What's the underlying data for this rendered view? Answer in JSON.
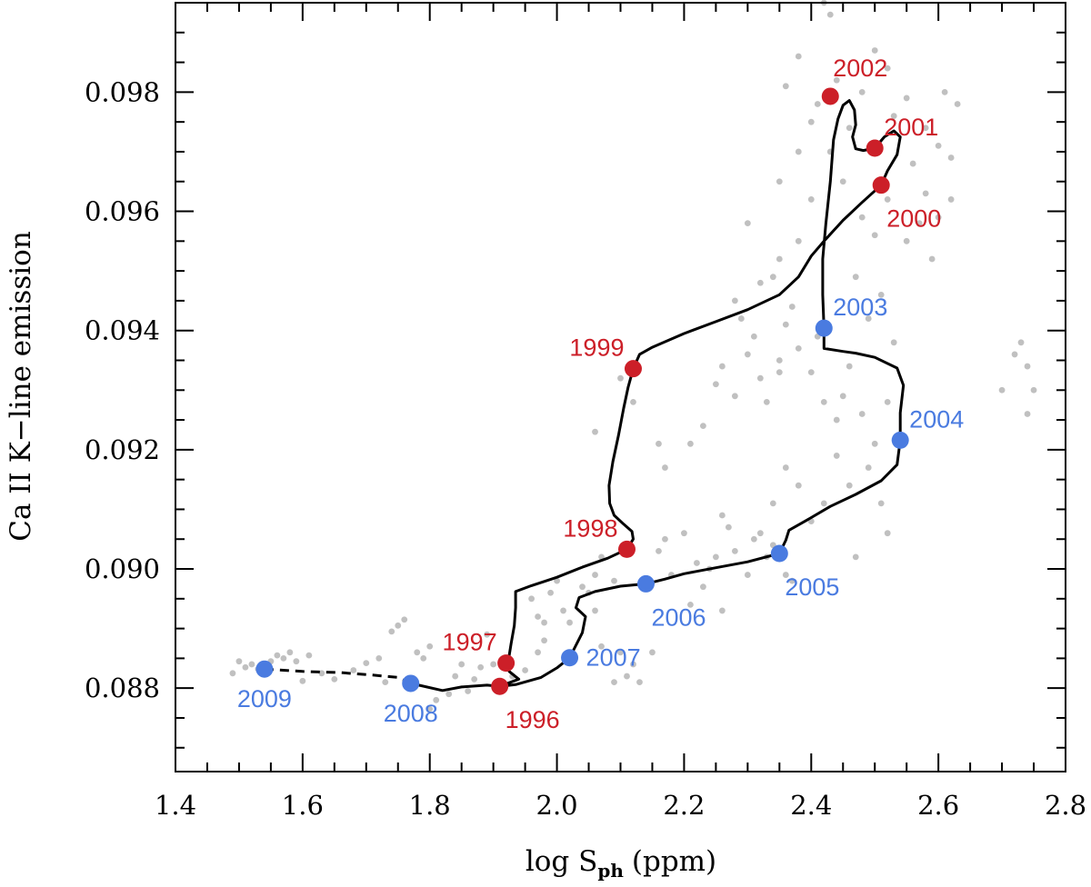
{
  "chart_data": {
    "type": "scatter",
    "title": "",
    "xlabel_main": "log S",
    "xlabel_sub": "ph",
    "xlabel_unit": "(ppm)",
    "ylabel": "Ca II K−line emission",
    "xlim": [
      1.4,
      2.8
    ],
    "ylim": [
      0.0866,
      0.0995
    ],
    "x_ticks": [
      1.4,
      1.6,
      1.8,
      2.0,
      2.2,
      2.4,
      2.6,
      2.8
    ],
    "x_tick_labels": [
      "1.4",
      "1.6",
      "1.8",
      "2.0",
      "2.2",
      "2.4",
      "2.6",
      "2.8"
    ],
    "y_ticks": [
      0.088,
      0.09,
      0.092,
      0.094,
      0.096,
      0.098
    ],
    "y_tick_labels": [
      "0.088",
      "0.090",
      "0.092",
      "0.094",
      "0.096",
      "0.098"
    ],
    "colors": {
      "rising": "#cc1f28",
      "declining": "#4a7be0",
      "scatter": "#c0c0c0",
      "track": "#000000"
    },
    "years": [
      {
        "year": "1996",
        "x": 1.91,
        "y": 0.08803,
        "phase": "rising",
        "label_pos": "below-right"
      },
      {
        "year": "1997",
        "x": 1.92,
        "y": 0.08842,
        "phase": "rising",
        "label_pos": "upper-left"
      },
      {
        "year": "1998",
        "x": 2.11,
        "y": 0.09033,
        "phase": "rising",
        "label_pos": "upper-left"
      },
      {
        "year": "1999",
        "x": 2.12,
        "y": 0.09336,
        "phase": "rising",
        "label_pos": "upper-left"
      },
      {
        "year": "2000",
        "x": 2.51,
        "y": 0.09644,
        "phase": "rising",
        "label_pos": "below-right"
      },
      {
        "year": "2001",
        "x": 2.5,
        "y": 0.09706,
        "phase": "rising",
        "label_pos": "upper-right"
      },
      {
        "year": "2002",
        "x": 2.43,
        "y": 0.09793,
        "phase": "rising",
        "label_pos": "above-right"
      },
      {
        "year": "2003",
        "x": 2.42,
        "y": 0.09404,
        "phase": "declining",
        "label_pos": "upper-right"
      },
      {
        "year": "2004",
        "x": 2.54,
        "y": 0.09216,
        "phase": "declining",
        "label_pos": "upper-right"
      },
      {
        "year": "2005",
        "x": 2.35,
        "y": 0.09026,
        "phase": "declining",
        "label_pos": "below-right"
      },
      {
        "year": "2006",
        "x": 2.14,
        "y": 0.08975,
        "phase": "declining",
        "label_pos": "below-right"
      },
      {
        "year": "2007",
        "x": 2.02,
        "y": 0.08851,
        "phase": "declining",
        "label_pos": "right"
      },
      {
        "year": "2008",
        "x": 1.77,
        "y": 0.08808,
        "phase": "declining",
        "label_pos": "below"
      },
      {
        "year": "2009",
        "x": 1.54,
        "y": 0.08832,
        "phase": "declining",
        "label_pos": "below"
      }
    ],
    "track_solid": [
      [
        1.77,
        0.08808
      ],
      [
        1.82,
        0.08796
      ],
      [
        1.85,
        0.08802
      ],
      [
        1.89,
        0.08805
      ],
      [
        1.91,
        0.08803
      ],
      [
        1.935,
        0.08806
      ],
      [
        1.975,
        0.08818
      ],
      [
        2.0,
        0.08834
      ],
      [
        2.02,
        0.08851
      ],
      [
        2.03,
        0.08872
      ],
      [
        2.04,
        0.08893
      ],
      [
        2.045,
        0.0892
      ],
      [
        2.03,
        0.08935
      ],
      [
        2.035,
        0.08952
      ],
      [
        2.06,
        0.08962
      ],
      [
        2.1,
        0.08971
      ],
      [
        2.14,
        0.08975
      ],
      [
        2.17,
        0.08983
      ],
      [
        2.2,
        0.08992
      ],
      [
        2.25,
        0.09002
      ],
      [
        2.3,
        0.09012
      ],
      [
        2.35,
        0.09026
      ],
      [
        2.36,
        0.09048
      ],
      [
        2.365,
        0.09065
      ],
      [
        2.39,
        0.0908
      ],
      [
        2.43,
        0.09105
      ],
      [
        2.47,
        0.09125
      ],
      [
        2.51,
        0.09148
      ],
      [
        2.535,
        0.09175
      ],
      [
        2.54,
        0.09216
      ],
      [
        2.54,
        0.09262
      ],
      [
        2.545,
        0.09308
      ],
      [
        2.535,
        0.09337
      ],
      [
        2.5,
        0.09355
      ],
      [
        2.47,
        0.09362
      ],
      [
        2.45,
        0.09365
      ],
      [
        2.42,
        0.0937
      ],
      [
        2.42,
        0.09404
      ],
      [
        2.418,
        0.0946
      ],
      [
        2.418,
        0.0952
      ],
      [
        2.423,
        0.0958
      ],
      [
        2.43,
        0.0965
      ],
      [
        2.435,
        0.0972
      ],
      [
        2.442,
        0.09755
      ],
      [
        2.45,
        0.09778
      ],
      [
        2.46,
        0.09786
      ],
      [
        2.468,
        0.0977
      ],
      [
        2.47,
        0.09745
      ],
      [
        2.465,
        0.09725
      ],
      [
        2.47,
        0.09705
      ],
      [
        2.482,
        0.09702
      ],
      [
        2.5,
        0.09706
      ],
      [
        2.515,
        0.09725
      ],
      [
        2.53,
        0.09735
      ],
      [
        2.54,
        0.09725
      ],
      [
        2.535,
        0.09695
      ],
      [
        2.52,
        0.09668
      ],
      [
        2.51,
        0.09644
      ],
      [
        2.48,
        0.09615
      ],
      [
        2.45,
        0.09585
      ],
      [
        2.42,
        0.0955
      ],
      [
        2.4,
        0.09525
      ],
      [
        2.38,
        0.0949
      ],
      [
        2.35,
        0.0946
      ],
      [
        2.3,
        0.09435
      ],
      [
        2.25,
        0.09415
      ],
      [
        2.2,
        0.09395
      ],
      [
        2.15,
        0.09372
      ],
      [
        2.13,
        0.0936
      ],
      [
        2.12,
        0.09336
      ],
      [
        2.112,
        0.09305
      ],
      [
        2.105,
        0.0927
      ],
      [
        2.097,
        0.09225
      ],
      [
        2.088,
        0.0918
      ],
      [
        2.082,
        0.0914
      ],
      [
        2.083,
        0.0911
      ],
      [
        2.09,
        0.0909
      ],
      [
        2.105,
        0.09075
      ],
      [
        2.118,
        0.09063
      ],
      [
        2.12,
        0.0905
      ],
      [
        2.11,
        0.09033
      ],
      [
        2.08,
        0.09018
      ],
      [
        2.04,
        0.09003
      ],
      [
        2.0,
        0.08986
      ],
      [
        1.96,
        0.08972
      ],
      [
        1.935,
        0.08962
      ],
      [
        1.935,
        0.08935
      ],
      [
        1.933,
        0.08905
      ],
      [
        1.928,
        0.08875
      ],
      [
        1.925,
        0.08855
      ],
      [
        1.92,
        0.08842
      ],
      [
        1.925,
        0.08828
      ],
      [
        1.94,
        0.08815
      ],
      [
        1.91,
        0.08803
      ]
    ],
    "track_dashed": [
      [
        1.54,
        0.08832
      ],
      [
        1.6,
        0.08828
      ],
      [
        1.66,
        0.08826
      ],
      [
        1.71,
        0.08822
      ],
      [
        1.75,
        0.08818
      ],
      [
        1.77,
        0.08808
      ]
    ],
    "background_points": [
      [
        1.49,
        0.08825
      ],
      [
        1.5,
        0.08845
      ],
      [
        1.51,
        0.08835
      ],
      [
        1.52,
        0.0884
      ],
      [
        1.53,
        0.08832
      ],
      [
        1.55,
        0.08845
      ],
      [
        1.56,
        0.08855
      ],
      [
        1.57,
        0.0885
      ],
      [
        1.58,
        0.0886
      ],
      [
        1.59,
        0.08845
      ],
      [
        1.61,
        0.08855
      ],
      [
        1.6,
        0.08812
      ],
      [
        1.63,
        0.08825
      ],
      [
        1.65,
        0.08815
      ],
      [
        1.68,
        0.0883
      ],
      [
        1.7,
        0.08842
      ],
      [
        1.72,
        0.0885
      ],
      [
        1.73,
        0.0881
      ],
      [
        1.74,
        0.08895
      ],
      [
        1.75,
        0.08905
      ],
      [
        1.76,
        0.08915
      ],
      [
        1.78,
        0.0886
      ],
      [
        1.79,
        0.0885
      ],
      [
        1.8,
        0.0887
      ],
      [
        1.81,
        0.0878
      ],
      [
        1.8,
        0.08765
      ],
      [
        1.83,
        0.0879
      ],
      [
        1.84,
        0.0882
      ],
      [
        1.85,
        0.0884
      ],
      [
        1.86,
        0.08795
      ],
      [
        1.87,
        0.08815
      ],
      [
        1.88,
        0.08835
      ],
      [
        1.89,
        0.0889
      ],
      [
        1.9,
        0.0884
      ],
      [
        1.93,
        0.0882
      ],
      [
        1.95,
        0.0883
      ],
      [
        1.96,
        0.0895
      ],
      [
        1.97,
        0.0892
      ],
      [
        1.98,
        0.0891
      ],
      [
        1.99,
        0.0896
      ],
      [
        2.0,
        0.0898
      ],
      [
        2.01,
        0.0893
      ],
      [
        2.02,
        0.0891
      ],
      [
        2.04,
        0.0897
      ],
      [
        2.05,
        0.0896
      ],
      [
        2.06,
        0.0899
      ],
      [
        2.07,
        0.0902
      ],
      [
        2.09,
        0.0898
      ],
      [
        2.1,
        0.0886
      ],
      [
        2.11,
        0.0882
      ],
      [
        2.12,
        0.0884
      ],
      [
        2.13,
        0.0881
      ],
      [
        2.15,
        0.0886
      ],
      [
        2.16,
        0.0903
      ],
      [
        2.17,
        0.0905
      ],
      [
        2.18,
        0.0899
      ],
      [
        2.2,
        0.0906
      ],
      [
        2.22,
        0.0901
      ],
      [
        2.24,
        0.09
      ],
      [
        2.25,
        0.0902
      ],
      [
        2.26,
        0.0909
      ],
      [
        2.27,
        0.0907
      ],
      [
        2.28,
        0.0903
      ],
      [
        2.3,
        0.0899
      ],
      [
        2.31,
        0.0905
      ],
      [
        2.32,
        0.0906
      ],
      [
        2.33,
        0.0902
      ],
      [
        2.34,
        0.0904
      ],
      [
        2.36,
        0.0899
      ],
      [
        2.37,
        0.0898
      ],
      [
        2.21,
        0.0921
      ],
      [
        2.23,
        0.0924
      ],
      [
        2.25,
        0.0931
      ],
      [
        2.26,
        0.0934
      ],
      [
        2.28,
        0.0929
      ],
      [
        2.3,
        0.0936
      ],
      [
        2.31,
        0.0939
      ],
      [
        2.32,
        0.0932
      ],
      [
        2.33,
        0.0928
      ],
      [
        2.35,
        0.0935
      ],
      [
        2.36,
        0.0941
      ],
      [
        2.38,
        0.0937
      ],
      [
        2.4,
        0.0933
      ],
      [
        2.42,
        0.0928
      ],
      [
        2.44,
        0.0925
      ],
      [
        2.45,
        0.0929
      ],
      [
        2.46,
        0.0934
      ],
      [
        2.48,
        0.0926
      ],
      [
        2.5,
        0.0921
      ],
      [
        2.52,
        0.0928
      ],
      [
        2.1,
        0.0932
      ],
      [
        2.12,
        0.0928
      ],
      [
        2.06,
        0.0923
      ],
      [
        2.28,
        0.0945
      ],
      [
        2.32,
        0.0948
      ],
      [
        2.35,
        0.0952
      ],
      [
        2.38,
        0.0955
      ],
      [
        2.4,
        0.0962
      ],
      [
        2.3,
        0.0958
      ],
      [
        2.35,
        0.0965
      ],
      [
        2.38,
        0.097
      ],
      [
        2.4,
        0.0975
      ],
      [
        2.36,
        0.0981
      ],
      [
        2.38,
        0.0986
      ],
      [
        2.41,
        0.0978
      ],
      [
        2.44,
        0.0982
      ],
      [
        2.46,
        0.0974
      ],
      [
        2.48,
        0.098
      ],
      [
        2.52,
        0.0984
      ],
      [
        2.53,
        0.0976
      ],
      [
        2.55,
        0.0979
      ],
      [
        2.56,
        0.0968
      ],
      [
        2.58,
        0.0974
      ],
      [
        2.6,
        0.0971
      ],
      [
        2.62,
        0.0969
      ],
      [
        2.61,
        0.098
      ],
      [
        2.63,
        0.0978
      ],
      [
        2.55,
        0.0955
      ],
      [
        2.57,
        0.0958
      ],
      [
        2.59,
        0.0952
      ],
      [
        2.52,
        0.0962
      ],
      [
        2.5,
        0.0956
      ],
      [
        2.48,
        0.0959
      ],
      [
        2.45,
        0.0965
      ],
      [
        2.43,
        0.097
      ],
      [
        2.43,
        0.0993
      ],
      [
        2.42,
        0.0995
      ],
      [
        2.5,
        0.0987
      ],
      [
        2.58,
        0.0963
      ],
      [
        2.6,
        0.0959
      ],
      [
        2.62,
        0.0962
      ],
      [
        2.7,
        0.093
      ],
      [
        2.72,
        0.0936
      ],
      [
        2.74,
        0.0934
      ],
      [
        2.75,
        0.093
      ],
      [
        2.73,
        0.0938
      ],
      [
        2.74,
        0.0926
      ],
      [
        2.47,
        0.0949
      ],
      [
        2.49,
        0.0942
      ],
      [
        2.51,
        0.0946
      ],
      [
        2.53,
        0.0938
      ],
      [
        2.44,
        0.0919
      ],
      [
        2.46,
        0.0914
      ],
      [
        2.49,
        0.0917
      ],
      [
        2.51,
        0.0911
      ],
      [
        2.52,
        0.0906
      ],
      [
        2.47,
        0.0902
      ],
      [
        2.42,
        0.0911
      ],
      [
        2.4,
        0.0908
      ],
      [
        2.38,
        0.0914
      ],
      [
        2.36,
        0.0917
      ],
      [
        2.34,
        0.0911
      ],
      [
        2.21,
        0.0894
      ],
      [
        2.23,
        0.0897
      ],
      [
        2.26,
        0.0893
      ],
      [
        1.98,
        0.0888
      ],
      [
        1.97,
        0.0886
      ],
      [
        2.07,
        0.0887
      ],
      [
        2.09,
        0.0881
      ],
      [
        2.06,
        0.0893
      ],
      [
        2.16,
        0.0921
      ],
      [
        2.17,
        0.0917
      ],
      [
        2.29,
        0.0942
      ],
      [
        2.35,
        0.0933
      ],
      [
        2.34,
        0.0949
      ],
      [
        2.37,
        0.0944
      ],
      [
        2.41,
        0.0939
      ]
    ]
  }
}
